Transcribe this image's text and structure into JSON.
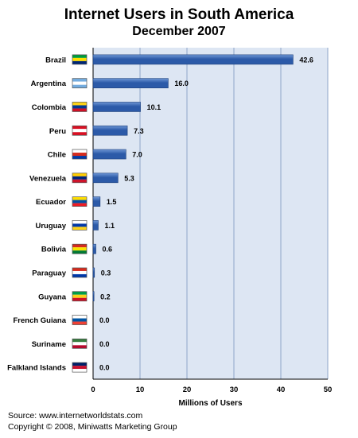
{
  "header": {
    "title": "Internet Users in South America",
    "subtitle": "December 2007"
  },
  "footer": {
    "source": "Source: www.internetworldstats.com",
    "copyright": "Copyright © 2008, Miniwatts Marketing Group"
  },
  "colors": {
    "plot_background": "#dde6f3",
    "bar": "#2c5aa8",
    "bar_highlight": "#6f97d6",
    "gridline": "#8fa6c8"
  },
  "chart_data": {
    "type": "bar",
    "orientation": "horizontal",
    "title": "Internet Users in South America",
    "subtitle": "December 2007",
    "xlabel": "Millions of Users",
    "ylabel": "",
    "xlim": [
      0,
      50
    ],
    "xticks": [
      0,
      10,
      20,
      30,
      40,
      50
    ],
    "grid": true,
    "categories": [
      "Brazil",
      "Argentina",
      "Colombia",
      "Peru",
      "Chile",
      "Venezuela",
      "Ecuador",
      "Uruguay",
      "Bolivia",
      "Paraguay",
      "Guyana",
      "French Guiana",
      "Suriname",
      "Falkland Islands"
    ],
    "values": [
      42.6,
      16.0,
      10.1,
      7.3,
      7.0,
      5.3,
      1.5,
      1.1,
      0.6,
      0.3,
      0.2,
      0.0,
      0.0,
      0.0
    ],
    "value_labels": [
      "42.6",
      "16.0",
      "10.1",
      "7.3",
      "7.0",
      "5.3",
      "1.5",
      "1.1",
      "0.6",
      "0.3",
      "0.2",
      "0.0",
      "0.0",
      "0.0"
    ]
  }
}
